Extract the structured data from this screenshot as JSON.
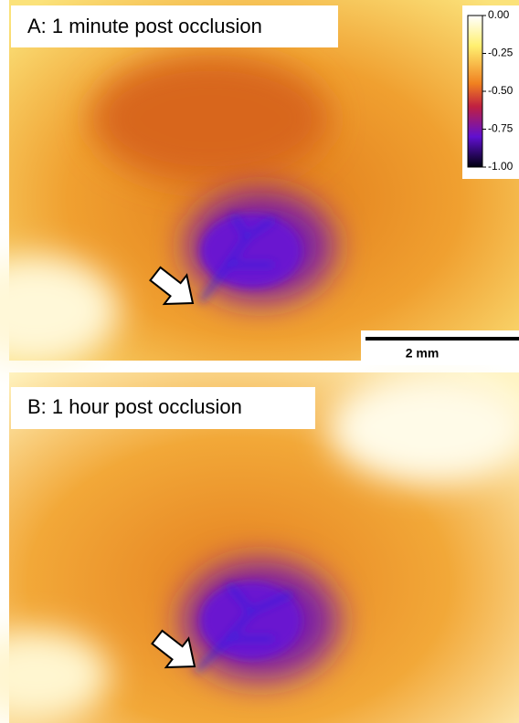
{
  "panels": [
    {
      "label": "A: 1 minute post occlusion"
    },
    {
      "label": "B: 1 hour post occlusion"
    }
  ],
  "colorbar": {
    "ticks": [
      "0.00",
      "-0.25",
      "-0.50",
      "-0.75",
      "-1.00"
    ]
  },
  "scale_bar": {
    "label": "2 mm"
  }
}
